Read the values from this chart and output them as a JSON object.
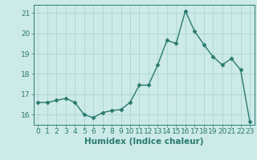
{
  "x": [
    0,
    1,
    2,
    3,
    4,
    5,
    6,
    7,
    8,
    9,
    10,
    11,
    12,
    13,
    14,
    15,
    16,
    17,
    18,
    19,
    20,
    21,
    22,
    23
  ],
  "y": [
    16.6,
    16.6,
    16.7,
    16.8,
    16.6,
    16.0,
    15.85,
    16.1,
    16.2,
    16.25,
    16.6,
    17.45,
    17.45,
    18.45,
    19.65,
    19.5,
    21.1,
    20.1,
    19.45,
    18.85,
    18.45,
    18.75,
    18.2,
    15.65
  ],
  "line_color": "#2a7a6e",
  "marker": "D",
  "markersize": 2.5,
  "linewidth": 1.0,
  "xlabel": "Humidex (Indice chaleur)",
  "xlim": [
    -0.5,
    23.5
  ],
  "ylim": [
    15.5,
    21.4
  ],
  "yticks": [
    16,
    17,
    18,
    19,
    20,
    21
  ],
  "xticks": [
    0,
    1,
    2,
    3,
    4,
    5,
    6,
    7,
    8,
    9,
    10,
    11,
    12,
    13,
    14,
    15,
    16,
    17,
    18,
    19,
    20,
    21,
    22,
    23
  ],
  "bg_color": "#cceae8",
  "grid_color": "#b0d8d5",
  "tick_color": "#2a7a6e",
  "xlabel_fontsize": 7.5,
  "tick_fontsize": 6.5
}
